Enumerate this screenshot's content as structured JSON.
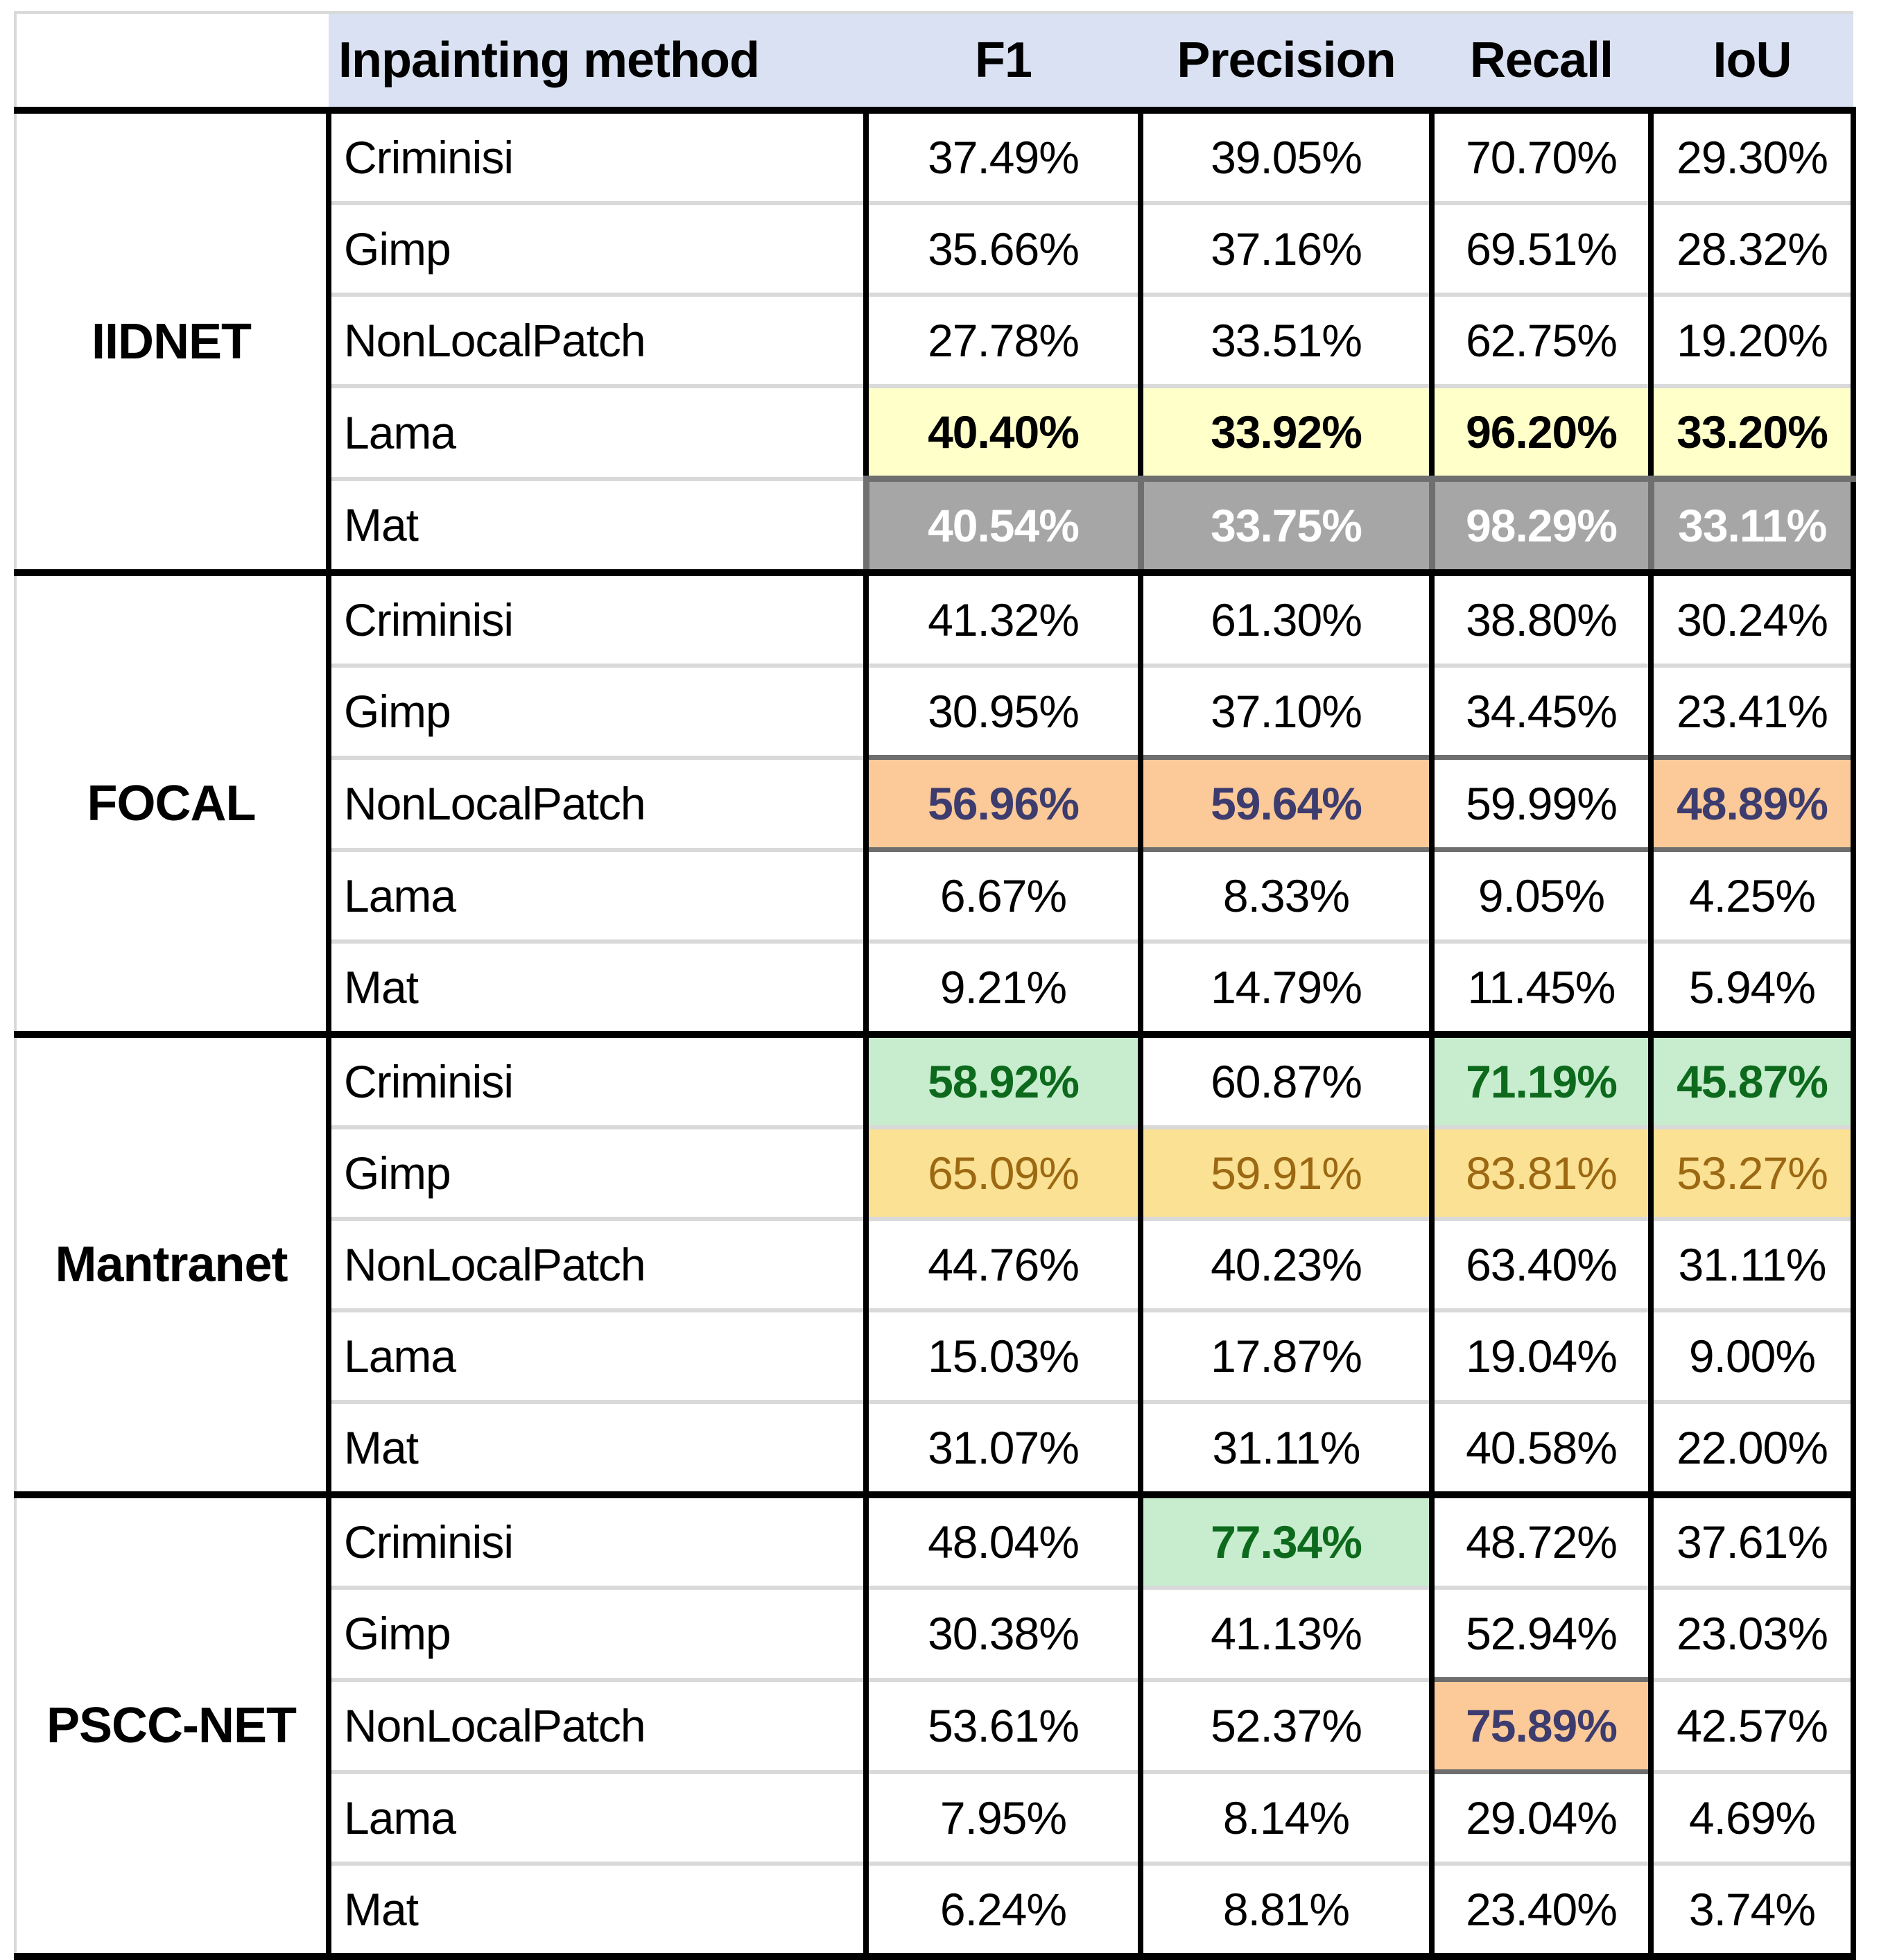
{
  "table": {
    "corner_label": "",
    "columns": [
      "Inpainting method",
      "F1",
      "Precision",
      "Recall",
      "IoU"
    ],
    "groups": [
      {
        "model": "IIDNET",
        "rows": [
          {
            "method": "Criminisi",
            "values": [
              "37.49%",
              "39.05%",
              "70.70%",
              "29.30%"
            ],
            "styles": [
              "",
              "",
              "",
              ""
            ]
          },
          {
            "method": "Gimp",
            "values": [
              "35.66%",
              "37.16%",
              "69.51%",
              "28.32%"
            ],
            "styles": [
              "",
              "",
              "",
              ""
            ]
          },
          {
            "method": "NonLocalPatch",
            "values": [
              "27.78%",
              "33.51%",
              "62.75%",
              "19.20%"
            ],
            "styles": [
              "",
              "",
              "",
              ""
            ]
          },
          {
            "method": "Lama",
            "values": [
              "40.40%",
              "33.92%",
              "96.20%",
              "33.20%"
            ],
            "styles": [
              "yellow",
              "yellow",
              "yellow",
              "yellow"
            ]
          },
          {
            "method": "Mat",
            "values": [
              "40.54%",
              "33.75%",
              "98.29%",
              "33.11%"
            ],
            "styles": [
              "grayblock",
              "grayblock",
              "grayblock",
              "grayblock"
            ]
          }
        ]
      },
      {
        "model": "FOCAL",
        "rows": [
          {
            "method": "Criminisi",
            "values": [
              "41.32%",
              "61.30%",
              "38.80%",
              "30.24%"
            ],
            "styles": [
              "",
              "",
              "",
              ""
            ]
          },
          {
            "method": "Gimp",
            "values": [
              "30.95%",
              "37.10%",
              "34.45%",
              "23.41%"
            ],
            "styles": [
              "",
              "",
              "",
              ""
            ]
          },
          {
            "method": "NonLocalPatch",
            "values": [
              "56.96%",
              "59.64%",
              "59.99%",
              "48.89%"
            ],
            "styles": [
              "orange dline",
              "orange dline",
              "dline",
              "orange dline"
            ]
          },
          {
            "method": "Lama",
            "values": [
              "6.67%",
              "8.33%",
              "9.05%",
              "4.25%"
            ],
            "styles": [
              "",
              "",
              "",
              ""
            ]
          },
          {
            "method": "Mat",
            "values": [
              "9.21%",
              "14.79%",
              "11.45%",
              "5.94%"
            ],
            "styles": [
              "",
              "",
              "",
              ""
            ]
          }
        ]
      },
      {
        "model": "Mantranet",
        "rows": [
          {
            "method": "Criminisi",
            "values": [
              "58.92%",
              "60.87%",
              "71.19%",
              "45.87%"
            ],
            "styles": [
              "green",
              "",
              "green",
              "green"
            ]
          },
          {
            "method": "Gimp",
            "values": [
              "65.09%",
              "59.91%",
              "83.81%",
              "53.27%"
            ],
            "styles": [
              "gold",
              "gold",
              "gold",
              "gold"
            ]
          },
          {
            "method": "NonLocalPatch",
            "values": [
              "44.76%",
              "40.23%",
              "63.40%",
              "31.11%"
            ],
            "styles": [
              "",
              "",
              "",
              ""
            ]
          },
          {
            "method": "Lama",
            "values": [
              "15.03%",
              "17.87%",
              "19.04%",
              "9.00%"
            ],
            "styles": [
              "",
              "",
              "",
              ""
            ]
          },
          {
            "method": "Mat",
            "values": [
              "31.07%",
              "31.11%",
              "40.58%",
              "22.00%"
            ],
            "styles": [
              "",
              "",
              "",
              ""
            ]
          }
        ]
      },
      {
        "model": "PSCC-NET",
        "rows": [
          {
            "method": "Criminisi",
            "values": [
              "48.04%",
              "77.34%",
              "48.72%",
              "37.61%"
            ],
            "styles": [
              "",
              "green",
              "",
              ""
            ]
          },
          {
            "method": "Gimp",
            "values": [
              "30.38%",
              "41.13%",
              "52.94%",
              "23.03%"
            ],
            "styles": [
              "",
              "",
              "",
              ""
            ]
          },
          {
            "method": "NonLocalPatch",
            "values": [
              "53.61%",
              "52.37%",
              "75.89%",
              "42.57%"
            ],
            "styles": [
              "",
              "",
              "orange dline",
              ""
            ]
          },
          {
            "method": "Lama",
            "values": [
              "7.95%",
              "8.14%",
              "29.04%",
              "4.69%"
            ],
            "styles": [
              "",
              "",
              "",
              ""
            ]
          },
          {
            "method": "Mat",
            "values": [
              "6.24%",
              "8.81%",
              "23.40%",
              "3.74%"
            ],
            "styles": [
              "",
              "",
              "",
              ""
            ]
          }
        ]
      }
    ]
  },
  "colors": {
    "header_bg": "#d9e1f2",
    "highlight_yellow": "#ffffc9",
    "highlight_orange": "#fbca98",
    "orange_text_navy": "#3d3c6e",
    "highlight_green": "#c7edce",
    "green_text": "#0d6a1d",
    "highlight_gold": "#fbe194",
    "gold_text": "#9c6812",
    "selected_gray_fill": "#a6a6a6",
    "selected_gray_border": "#6f6f6f",
    "grid_light": "#d9d9d9",
    "grid_black": "#000000"
  }
}
